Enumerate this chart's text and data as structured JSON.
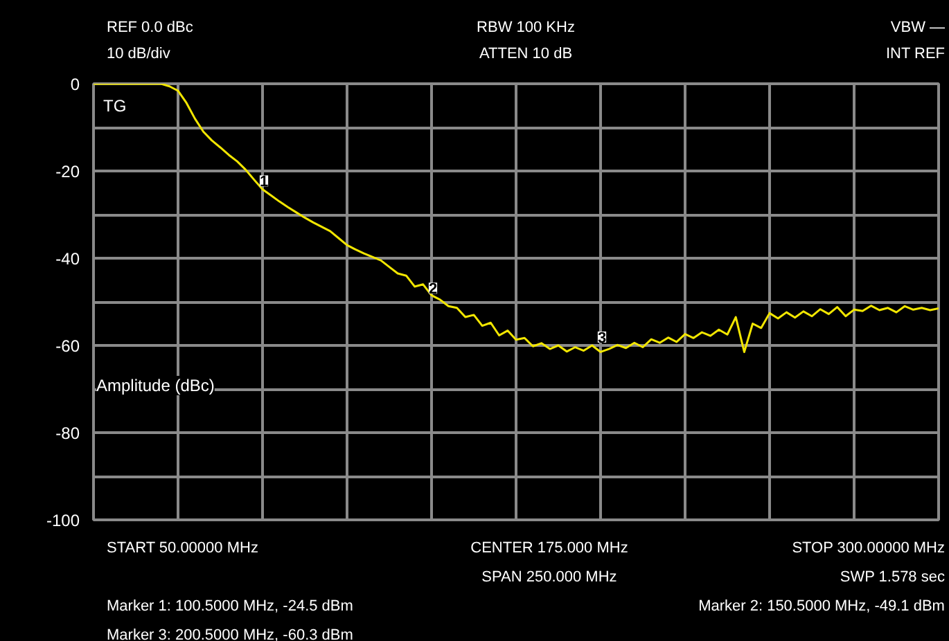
{
  "chart_data": {
    "type": "line",
    "ylabel": "Amplitude (dBc)",
    "categories": [
      null,
      null,
      null,
      null,
      null,
      null,
      null,
      null,
      null,
      null,
      null,
      null,
      null,
      null,
      null,
      null,
      null,
      null,
      null,
      null,
      null,
      null,
      null,
      null,
      null,
      null,
      null,
      null,
      null,
      null,
      null,
      null,
      null,
      null,
      null,
      null,
      null,
      null,
      null,
      null,
      null,
      null,
      null,
      null,
      null,
      null,
      null,
      null,
      null,
      null,
      null,
      null,
      null,
      null,
      null,
      null,
      null,
      null,
      null,
      null,
      null,
      null,
      null,
      null,
      null,
      null,
      null,
      null,
      null,
      null,
      null,
      null,
      null,
      null,
      null,
      null,
      null,
      null,
      null,
      null,
      null,
      null,
      null,
      null,
      null,
      null,
      null,
      null,
      null,
      null,
      null,
      null,
      null,
      null,
      null,
      null,
      null,
      null,
      null,
      null,
      null
    ],
    "series": [
      {
        "color": "#f2e600",
        "values": [
          0,
          0,
          0,
          0,
          0,
          0,
          0,
          0,
          0,
          -0.6,
          -1.6,
          -4.4,
          -8,
          -11,
          -13,
          -14.6,
          -16.3,
          -17.8,
          -19.7,
          -22,
          -24.2,
          -25.6,
          -27,
          -28.3,
          -29.5,
          -30.7,
          -31.8,
          -32.8,
          -33.8,
          -35.4,
          -37,
          -38,
          -38.9,
          -39.7,
          -40.5,
          -42,
          -43.5,
          -44,
          -46.5,
          -46,
          -48.5,
          -49.5,
          -51,
          -51.4,
          -53.5,
          -53,
          -55.5,
          -54.8,
          -57.7,
          -56.6,
          -58.7,
          -58.3,
          -60.2,
          -59.5,
          -60.8,
          -60,
          -61.4,
          -60.4,
          -61.2,
          -60,
          -61.5,
          -60.8,
          -59.9,
          -60.6,
          -59.4,
          -60.4,
          -58.6,
          -59.4,
          -58.2,
          -59.2,
          -57.4,
          -58.3,
          -57,
          -57.8,
          -56.4,
          -57.5,
          -53.5,
          -61.5,
          -55,
          -56,
          -52.6,
          -53.8,
          -52.4,
          -53.6,
          -52.2,
          -53.3,
          -51.7,
          -52.8,
          -51.2,
          -53.3,
          -51.8,
          -52.1,
          -50.9,
          -51.9,
          -51.4,
          -52.4,
          -51,
          -51.8,
          -51.4,
          -51.9,
          -51.5
        ]
      }
    ],
    "ylim": [
      -100,
      0
    ],
    "yticks": [
      0,
      {
        "value": -10,
        "label": null
      },
      -20,
      {
        "value": -30,
        "label": null
      },
      -40,
      {
        "value": -50,
        "label": null
      },
      -60,
      {
        "value": -70,
        "label": null
      },
      -80,
      {
        "value": -90,
        "label": null
      },
      -100
    ],
    "grid": true,
    "tick_labels": "y",
    "annotations": [
      "REF 0.0 dBc",
      "RBW 100 KHz",
      "VBW —",
      "10 dB/div",
      "ATTEN 10 dB",
      "INT REF",
      "START 50.00000 MHz",
      "CENTER 175.000 MHz",
      "STOP 300.00000 MHz",
      "SPAN 250.000 MHz",
      "SWP 1.578 sec",
      "Marker 1: 100.5000 MHz, -24.5 dBm",
      "Marker 2: 150.5000 MHz, -49.1 dBm",
      "Marker 3: 200.5000 MHz, -60.3 dBm",
      "TG",
      {
        "text": "1",
        "y": -24.5
      },
      {
        "text": "2",
        "y": -49.1
      },
      {
        "text": "3",
        "y": -60.3
      }
    ]
  }
}
